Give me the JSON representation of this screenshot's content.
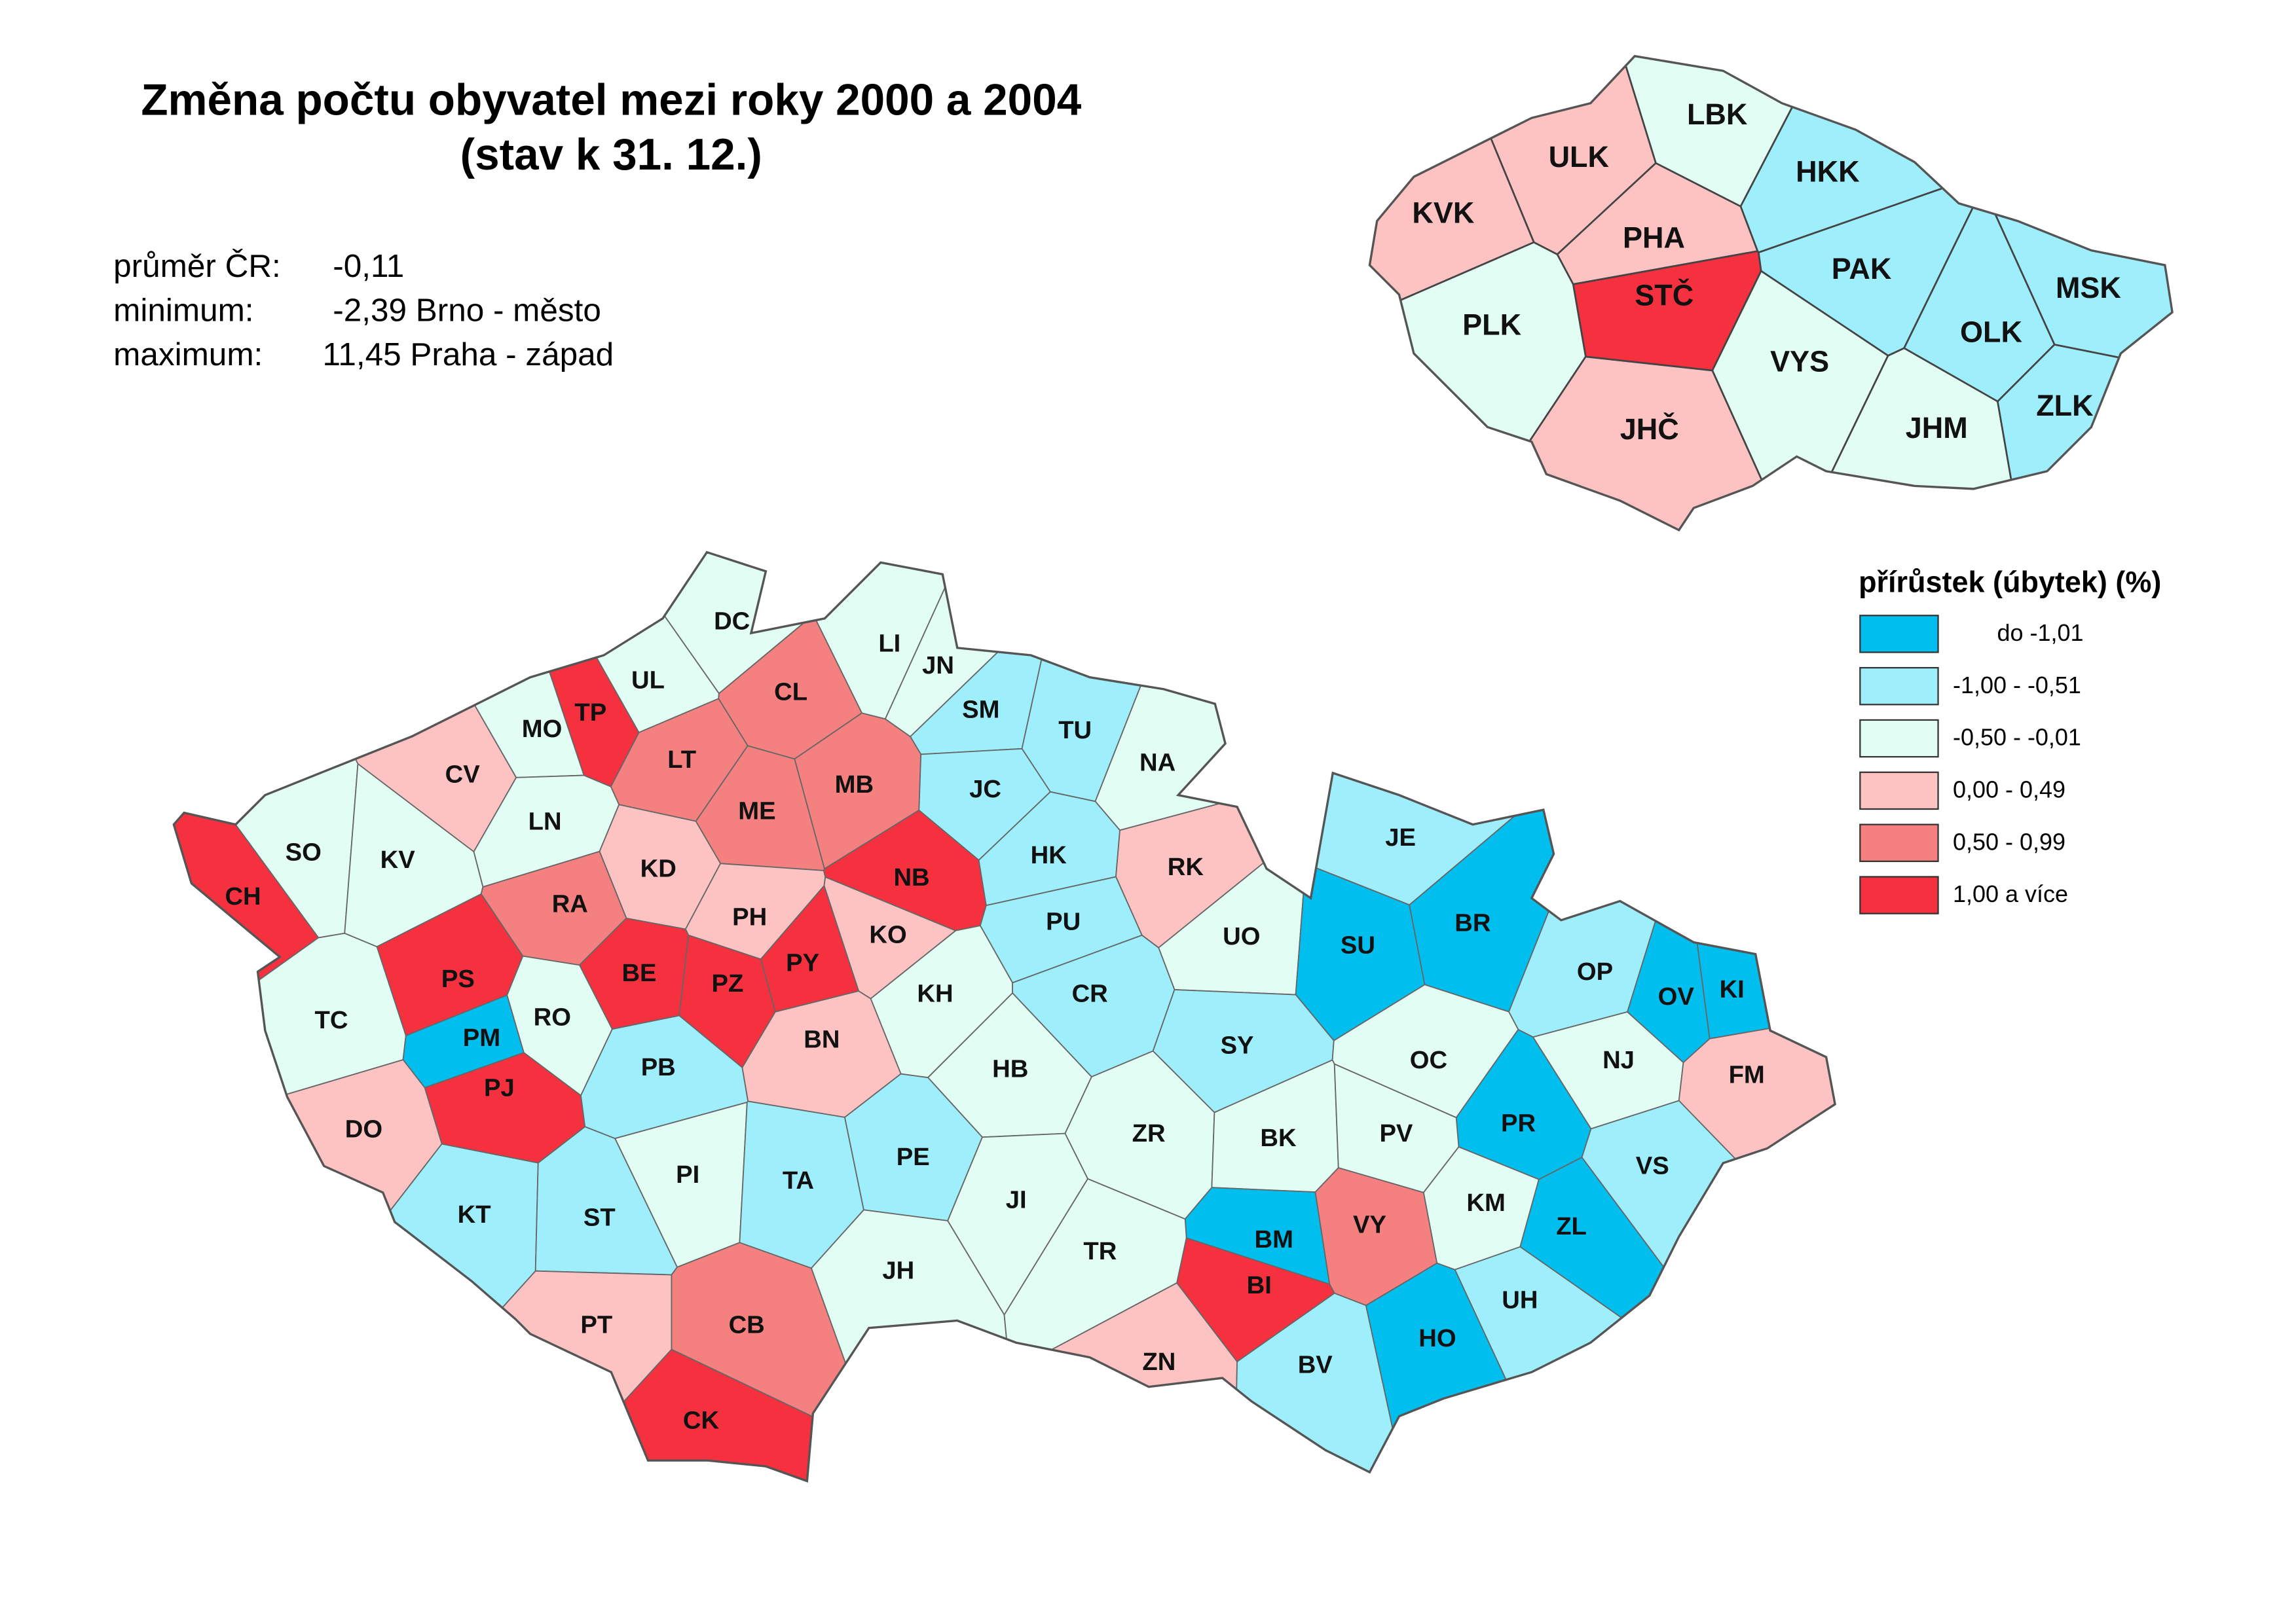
{
  "title": [
    "Změna počtu obyvatel mezi roky 2000 a 2004",
    "(stav k 31. 12.)"
  ],
  "stats": [
    {
      "label": "průměr ČR:",
      "value": "-0,11"
    },
    {
      "label": "minimum:",
      "value": "-2,39 Brno - město"
    },
    {
      "label": "maximum:",
      "value": "11,45 Praha - západ"
    }
  ],
  "legend": {
    "title": "přírůstek (úbytek) (%)",
    "items": [
      {
        "label": "do -1,01",
        "color": "#00bfef"
      },
      {
        "label": "-1,00 - -0,51",
        "color": "#9eeefc"
      },
      {
        "label": "-0,50 - -0,01",
        "color": "#e2fdf3"
      },
      {
        "label": "0,00 -  0,49",
        "color": "#fdc3c3"
      },
      {
        "label": "0,50 -  0,99",
        "color": "#f58080"
      },
      {
        "label": "1,00 a více",
        "color": "#f5303f"
      }
    ]
  },
  "regions": [
    {
      "label": "LBK",
      "color": "#e2fdf3"
    },
    {
      "label": "ULK",
      "color": "#fdc3c3"
    },
    {
      "label": "HKK",
      "color": "#9eeefc"
    },
    {
      "label": "KVK",
      "color": "#fdc3c3"
    },
    {
      "label": "PHA",
      "color": "#fdc3c3"
    },
    {
      "label": "STČ",
      "color": "#f5303f"
    },
    {
      "label": "PAK",
      "color": "#9eeefc"
    },
    {
      "label": "MSK",
      "color": "#9eeefc"
    },
    {
      "label": "PLK",
      "color": "#e2fdf3"
    },
    {
      "label": "VYS",
      "color": "#e2fdf3"
    },
    {
      "label": "OLK",
      "color": "#9eeefc"
    },
    {
      "label": "JHM",
      "color": "#e2fdf3"
    },
    {
      "label": "ZLK",
      "color": "#9eeefc"
    },
    {
      "label": "JHČ",
      "color": "#fdc3c3"
    }
  ],
  "districts": [
    {
      "label": "DC",
      "color": "#e2fdf3"
    },
    {
      "label": "LI",
      "color": "#e2fdf3"
    },
    {
      "label": "JN",
      "color": "#e2fdf3"
    },
    {
      "label": "UL",
      "color": "#e2fdf3"
    },
    {
      "label": "CL",
      "color": "#f58080"
    },
    {
      "label": "TP",
      "color": "#f5303f"
    },
    {
      "label": "SM",
      "color": "#9eeefc"
    },
    {
      "label": "TU",
      "color": "#9eeefc"
    },
    {
      "label": "MO",
      "color": "#e2fdf3"
    },
    {
      "label": "LT",
      "color": "#f58080"
    },
    {
      "label": "MB",
      "color": "#f58080"
    },
    {
      "label": "NA",
      "color": "#e2fdf3"
    },
    {
      "label": "CV",
      "color": "#fdc3c3"
    },
    {
      "label": "LN",
      "color": "#e2fdf3"
    },
    {
      "label": "ME",
      "color": "#f58080"
    },
    {
      "label": "JC",
      "color": "#9eeefc"
    },
    {
      "label": "SO",
      "color": "#e2fdf3"
    },
    {
      "label": "KV",
      "color": "#e2fdf3"
    },
    {
      "label": "KD",
      "color": "#fdc3c3"
    },
    {
      "label": "NB",
      "color": "#f5303f"
    },
    {
      "label": "HK",
      "color": "#9eeefc"
    },
    {
      "label": "RK",
      "color": "#fdc3c3"
    },
    {
      "label": "JE",
      "color": "#9eeefc"
    },
    {
      "label": "CH",
      "color": "#f5303f"
    },
    {
      "label": "RA",
      "color": "#f58080"
    },
    {
      "label": "PH",
      "color": "#fdc3c3"
    },
    {
      "label": "PU",
      "color": "#9eeefc"
    },
    {
      "label": "UO",
      "color": "#e2fdf3"
    },
    {
      "label": "SU",
      "color": "#00bfef"
    },
    {
      "label": "BR",
      "color": "#00bfef"
    },
    {
      "label": "PS",
      "color": "#f5303f"
    },
    {
      "label": "KO",
      "color": "#fdc3c3"
    },
    {
      "label": "PY",
      "color": "#f5303f"
    },
    {
      "label": "BE",
      "color": "#f5303f"
    },
    {
      "label": "PZ",
      "color": "#f5303f"
    },
    {
      "label": "KH",
      "color": "#e2fdf3"
    },
    {
      "label": "OP",
      "color": "#9eeefc"
    },
    {
      "label": "OV",
      "color": "#00bfef"
    },
    {
      "label": "KI",
      "color": "#00bfef"
    },
    {
      "label": "TC",
      "color": "#e2fdf3"
    },
    {
      "label": "PM",
      "color": "#00bfef"
    },
    {
      "label": "RO",
      "color": "#e2fdf3"
    },
    {
      "label": "CR",
      "color": "#9eeefc"
    },
    {
      "label": "SY",
      "color": "#9eeefc"
    },
    {
      "label": "OC",
      "color": "#e2fdf3"
    },
    {
      "label": "NJ",
      "color": "#e2fdf3"
    },
    {
      "label": "FM",
      "color": "#fdc3c3"
    },
    {
      "label": "PJ",
      "color": "#f5303f"
    },
    {
      "label": "PB",
      "color": "#9eeefc"
    },
    {
      "label": "BN",
      "color": "#fdc3c3"
    },
    {
      "label": "HB",
      "color": "#e2fdf3"
    },
    {
      "label": "DO",
      "color": "#fdc3c3"
    },
    {
      "label": "PR",
      "color": "#00bfef"
    },
    {
      "label": "PI",
      "color": "#e2fdf3"
    },
    {
      "label": "TA",
      "color": "#9eeefc"
    },
    {
      "label": "PE",
      "color": "#9eeefc"
    },
    {
      "label": "ZR",
      "color": "#e2fdf3"
    },
    {
      "label": "BK",
      "color": "#e2fdf3"
    },
    {
      "label": "PV",
      "color": "#e2fdf3"
    },
    {
      "label": "VS",
      "color": "#9eeefc"
    },
    {
      "label": "KT",
      "color": "#9eeefc"
    },
    {
      "label": "ST",
      "color": "#9eeefc"
    },
    {
      "label": "JI",
      "color": "#e2fdf3"
    },
    {
      "label": "KM",
      "color": "#e2fdf3"
    },
    {
      "label": "ZL",
      "color": "#00bfef"
    },
    {
      "label": "BM",
      "color": "#00bfef"
    },
    {
      "label": "VY",
      "color": "#f58080"
    },
    {
      "label": "JH",
      "color": "#e2fdf3"
    },
    {
      "label": "TR",
      "color": "#e2fdf3"
    },
    {
      "label": "BI",
      "color": "#f5303f"
    },
    {
      "label": "UH",
      "color": "#9eeefc"
    },
    {
      "label": "PT",
      "color": "#fdc3c3"
    },
    {
      "label": "CB",
      "color": "#f58080"
    },
    {
      "label": "ZN",
      "color": "#fdc3c3"
    },
    {
      "label": "BV",
      "color": "#9eeefc"
    },
    {
      "label": "HO",
      "color": "#00bfef"
    },
    {
      "label": "CK",
      "color": "#f5303f"
    }
  ]
}
